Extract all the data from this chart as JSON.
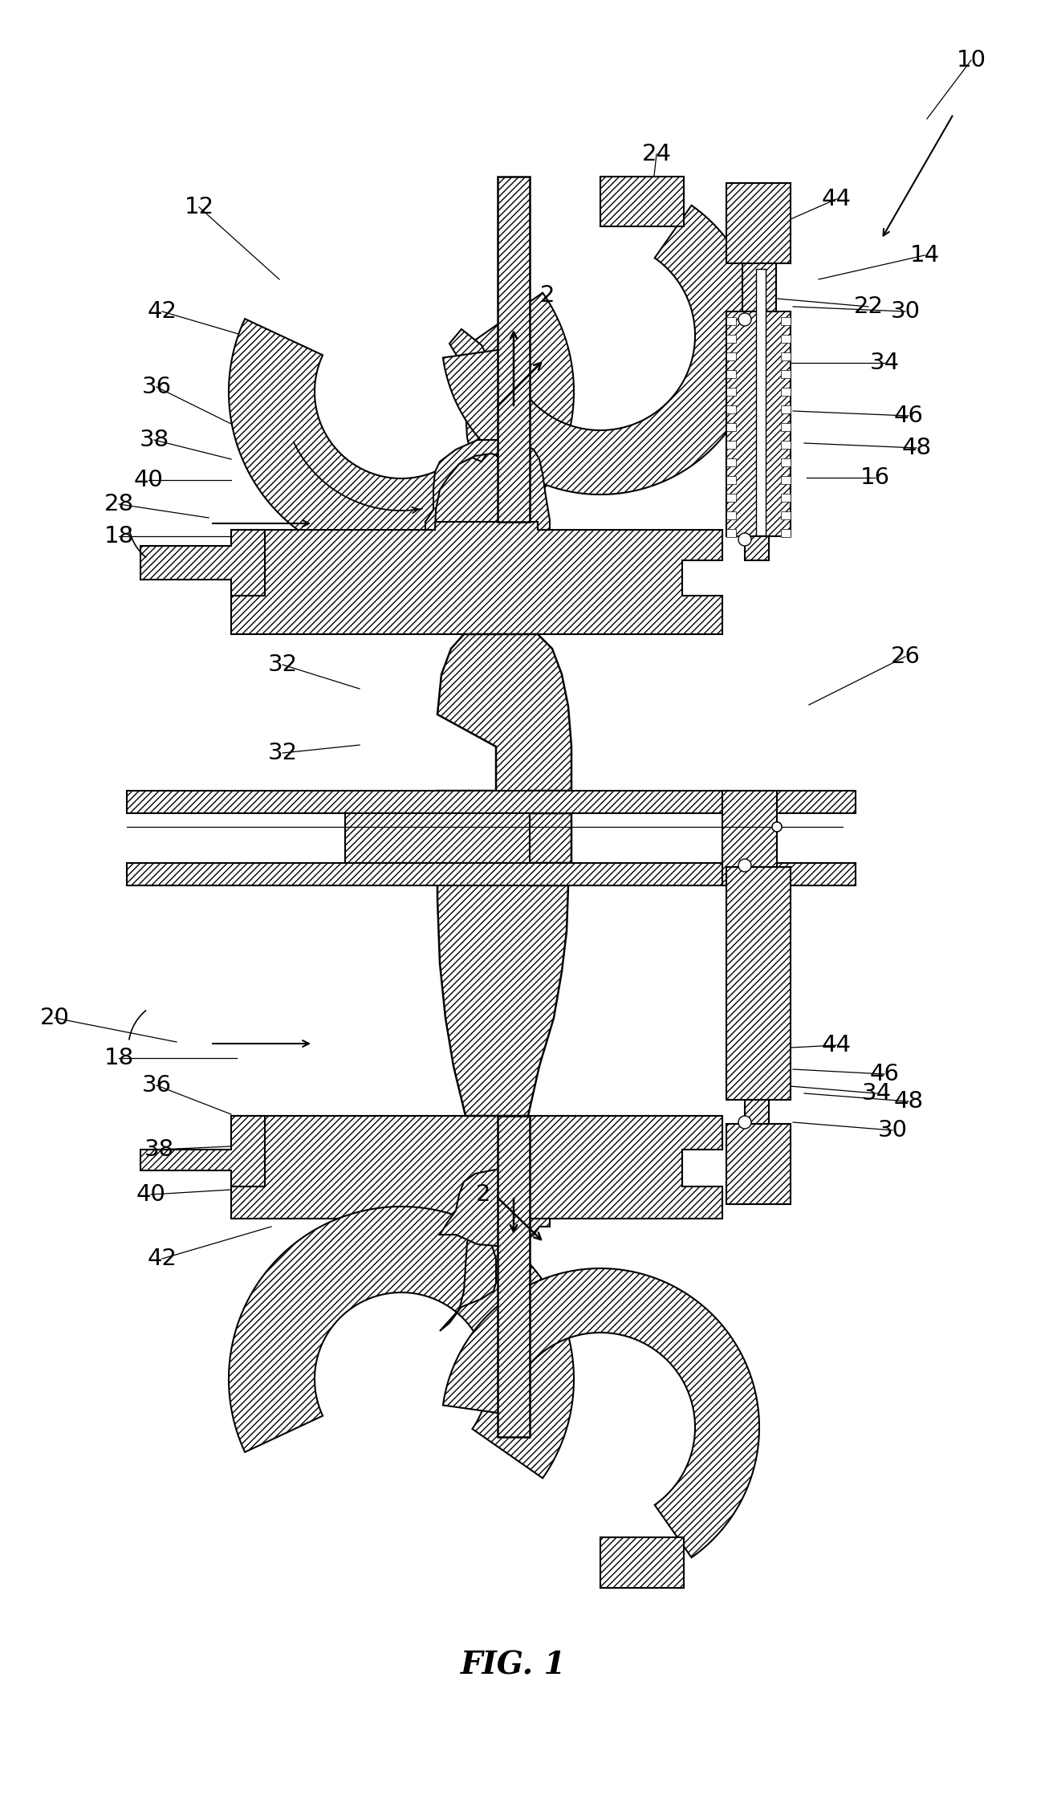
{
  "bg_color": "#ffffff",
  "line_color": "#000000",
  "fig_label": "FIG. 1",
  "labels": [
    [
      "10",
      1210,
      75
    ],
    [
      "12",
      248,
      258
    ],
    [
      "14",
      1152,
      318
    ],
    [
      "16",
      1090,
      595
    ],
    [
      "18",
      148,
      668
    ],
    [
      "18",
      148,
      1318
    ],
    [
      "20",
      68,
      1268
    ],
    [
      "22",
      1082,
      382
    ],
    [
      "24",
      818,
      192
    ],
    [
      "26",
      1128,
      818
    ],
    [
      "28",
      148,
      628
    ],
    [
      "30",
      1128,
      388
    ],
    [
      "30",
      1112,
      1408
    ],
    [
      "32",
      352,
      828
    ],
    [
      "32",
      352,
      938
    ],
    [
      "34",
      1102,
      452
    ],
    [
      "34",
      1092,
      1362
    ],
    [
      "36",
      195,
      482
    ],
    [
      "36",
      195,
      1352
    ],
    [
      "38",
      192,
      548
    ],
    [
      "38",
      198,
      1432
    ],
    [
      "40",
      185,
      598
    ],
    [
      "40",
      188,
      1488
    ],
    [
      "42",
      202,
      388
    ],
    [
      "42",
      202,
      1568
    ],
    [
      "44",
      1042,
      248
    ],
    [
      "44",
      1042,
      1302
    ],
    [
      "46",
      1132,
      518
    ],
    [
      "46",
      1102,
      1338
    ],
    [
      "48",
      1142,
      558
    ],
    [
      "48",
      1132,
      1372
    ],
    [
      "2",
      682,
      368
    ],
    [
      "2",
      602,
      1488
    ]
  ],
  "leader_lines": [
    [
      1210,
      75,
      1155,
      148
    ],
    [
      248,
      258,
      348,
      348
    ],
    [
      1152,
      318,
      1020,
      348
    ],
    [
      1090,
      595,
      1005,
      595
    ],
    [
      148,
      668,
      295,
      668
    ],
    [
      148,
      1318,
      295,
      1318
    ],
    [
      68,
      1268,
      220,
      1298
    ],
    [
      1082,
      382,
      968,
      372
    ],
    [
      818,
      192,
      808,
      282
    ],
    [
      1128,
      818,
      1008,
      878
    ],
    [
      148,
      628,
      260,
      645
    ],
    [
      1128,
      388,
      988,
      382
    ],
    [
      1112,
      1408,
      988,
      1398
    ],
    [
      352,
      828,
      448,
      858
    ],
    [
      352,
      938,
      448,
      928
    ],
    [
      1102,
      452,
      972,
      452
    ],
    [
      1092,
      1362,
      972,
      1352
    ],
    [
      195,
      482,
      288,
      528
    ],
    [
      195,
      1352,
      288,
      1388
    ],
    [
      192,
      548,
      288,
      572
    ],
    [
      198,
      1432,
      288,
      1428
    ],
    [
      185,
      598,
      288,
      598
    ],
    [
      188,
      1488,
      288,
      1482
    ],
    [
      202,
      388,
      338,
      428
    ],
    [
      202,
      1568,
      338,
      1528
    ],
    [
      1042,
      248,
      928,
      298
    ],
    [
      1042,
      1302,
      928,
      1308
    ],
    [
      1132,
      518,
      988,
      512
    ],
    [
      1102,
      1338,
      988,
      1332
    ],
    [
      1142,
      558,
      1002,
      552
    ],
    [
      1132,
      1372,
      1002,
      1362
    ]
  ]
}
